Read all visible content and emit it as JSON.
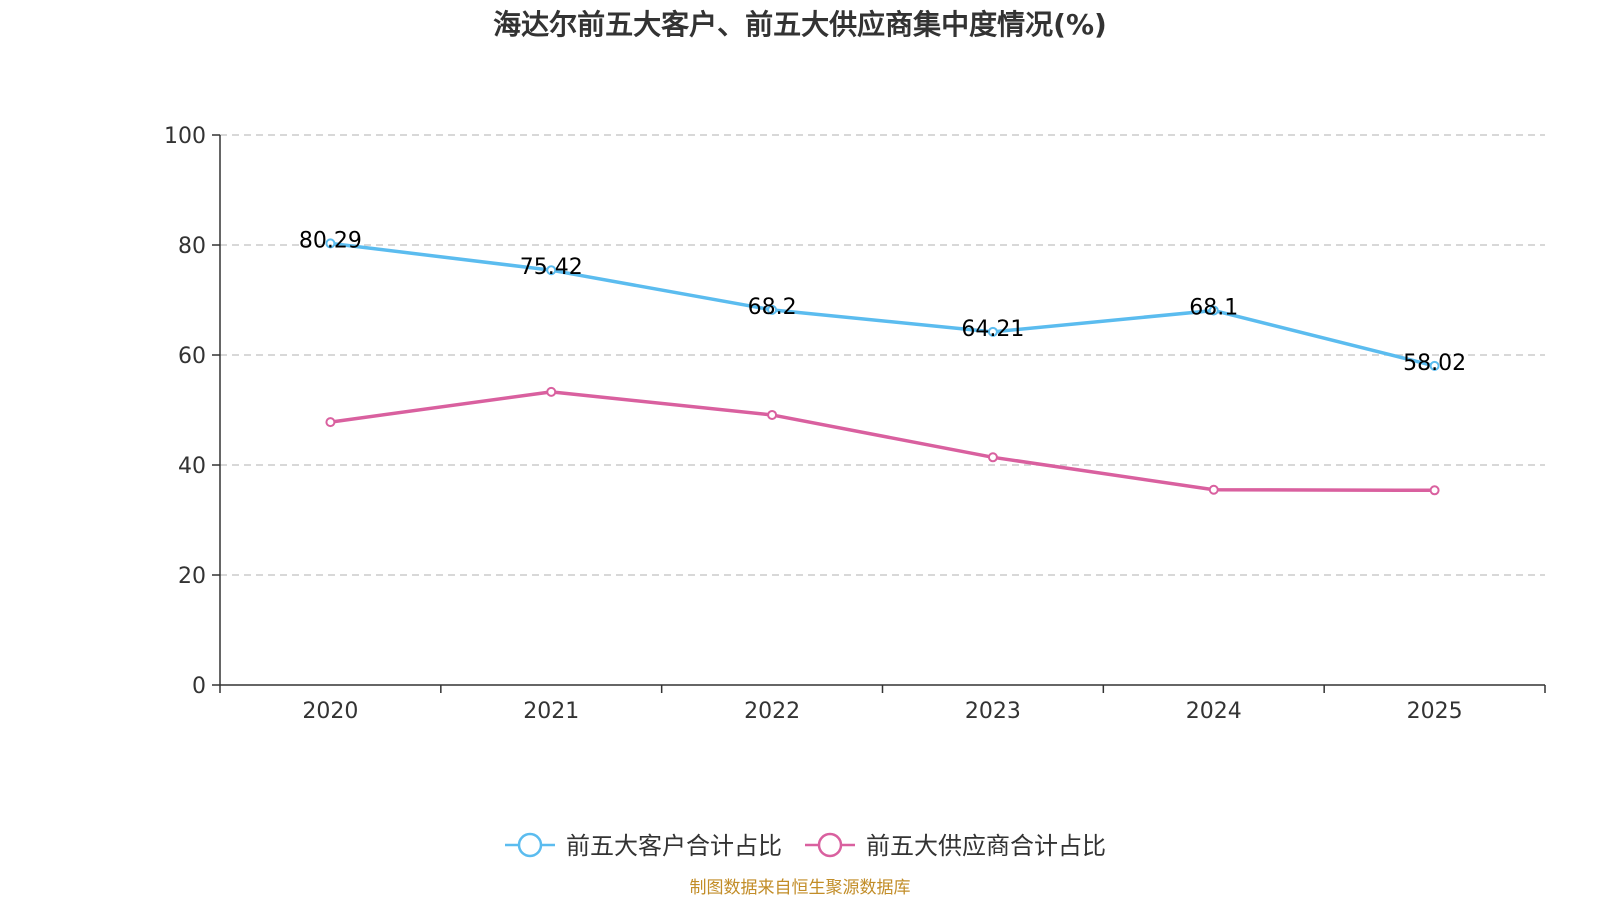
{
  "chart_data": {
    "type": "line",
    "title": "海达尔前五大客户、前五大供应商集中度情况(%)",
    "categories": [
      "2020",
      "2021",
      "2022",
      "2023",
      "2024",
      "2025"
    ],
    "ylim": [
      0,
      100
    ],
    "yticks": [
      0,
      20,
      40,
      60,
      80,
      100
    ],
    "grid": true,
    "legend_position": "bottom-center",
    "series": [
      {
        "name": "前五大客户合计占比",
        "color": "#5bbcef",
        "values": [
          80.29,
          75.42,
          68.2,
          64.21,
          68.1,
          58.02
        ],
        "labels": [
          "80.29",
          "75.42",
          "68.2",
          "64.21",
          "68.1",
          "58.02"
        ],
        "show_labels": true
      },
      {
        "name": "前五大供应商合计占比",
        "color": "#d9609f",
        "values": [
          47.8,
          53.3,
          49.1,
          41.4,
          35.5,
          35.4
        ],
        "show_labels": false
      }
    ],
    "source": "制图数据来自恒生聚源数据库",
    "source_color": "#c28d28"
  }
}
